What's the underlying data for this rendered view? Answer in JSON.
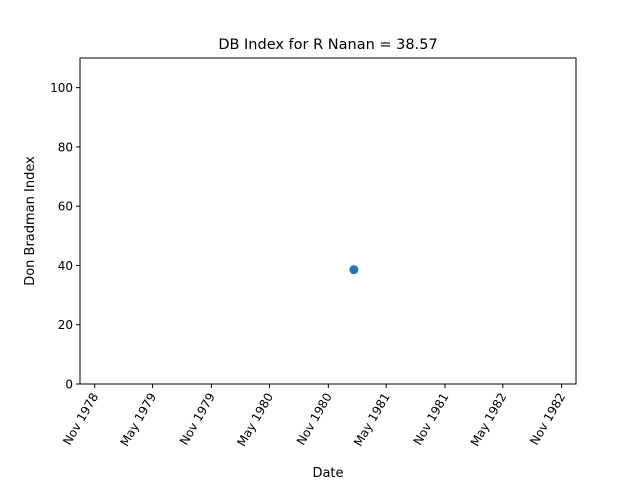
{
  "chart_data": {
    "type": "scatter",
    "title": "DB Index for R Nanan = 38.57",
    "xlabel": "Date",
    "ylabel": "Don Bradman Index",
    "x_type": "date",
    "xlim": [
      "1978-09-16",
      "1982-12-16"
    ],
    "ylim": [
      0,
      110
    ],
    "x_ticks": [
      {
        "date": "1978-11-01",
        "label": "Nov 1978"
      },
      {
        "date": "1979-05-01",
        "label": "May 1979"
      },
      {
        "date": "1979-11-01",
        "label": "Nov 1979"
      },
      {
        "date": "1980-05-01",
        "label": "May 1980"
      },
      {
        "date": "1980-11-01",
        "label": "Nov 1980"
      },
      {
        "date": "1981-05-01",
        "label": "May 1981"
      },
      {
        "date": "1981-11-01",
        "label": "Nov 1981"
      },
      {
        "date": "1982-05-01",
        "label": "May 1982"
      },
      {
        "date": "1982-11-01",
        "label": "Nov 1982"
      }
    ],
    "y_ticks": [
      0,
      20,
      40,
      60,
      80,
      100
    ],
    "grid": false,
    "series": [
      {
        "color": "#1f77b4",
        "points": [
          {
            "x": "1981-01-20",
            "y": 38.57
          }
        ]
      }
    ]
  }
}
